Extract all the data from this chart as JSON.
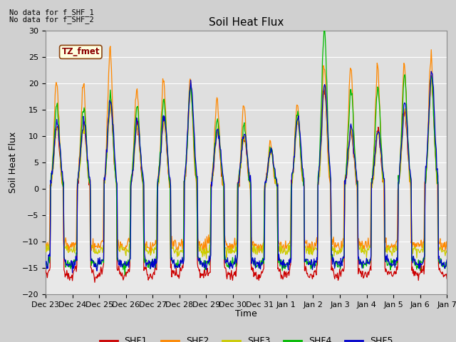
{
  "title": "Soil Heat Flux",
  "ylabel": "Soil Heat Flux",
  "xlabel": "Time",
  "no_data_text_1": "No data for f_SHF_1",
  "no_data_text_2": "No data for f_SHF_2",
  "tz_label": "TZ_fmet",
  "ylim": [
    -20,
    30
  ],
  "legend_entries": [
    "SHF1",
    "SHF2",
    "SHF3",
    "SHF4",
    "SHF5"
  ],
  "line_colors": [
    "#cc0000",
    "#ff8800",
    "#cccc00",
    "#00bb00",
    "#0000cc"
  ],
  "x_tick_labels": [
    "Dec 23",
    "Dec 24",
    "Dec 25",
    "Dec 26",
    "Dec 27",
    "Dec 28",
    "Dec 29",
    "Dec 30",
    "Dec 31",
    "Jan 1",
    "Jan 2",
    "Jan 3",
    "Jan 4",
    "Jan 5",
    "Jan 6",
    "Jan 7"
  ],
  "yticks": [
    -20,
    -15,
    -10,
    -5,
    0,
    5,
    10,
    15,
    20,
    25,
    30
  ],
  "fig_bg": "#d0d0d0",
  "ax_bg": "#e8e8e8",
  "grid_color": "#ffffff",
  "num_days": 15,
  "pts_per_day": 48,
  "day_peak_amps": [
    12,
    12,
    16,
    12,
    13,
    19,
    11,
    10,
    7,
    13,
    19,
    11,
    11,
    15,
    21,
    16
  ],
  "shf2_extra": [
    1.7,
    1.65,
    1.65,
    1.6,
    1.6,
    1.1,
    1.5,
    1.6,
    1.25,
    1.25,
    1.25,
    2.1,
    2.1,
    1.55,
    1.23,
    1.6
  ],
  "shf4_extra": [
    1.3,
    1.3,
    1.1,
    1.3,
    1.3,
    1.0,
    1.2,
    1.2,
    1.1,
    1.1,
    1.6,
    1.7,
    1.7,
    1.4,
    1.0,
    1.3
  ],
  "night_trough": -14.5,
  "night_trough_shf1": -16.5,
  "night_trough_shf2": -11.0,
  "night_trough_shf3": -12.0
}
